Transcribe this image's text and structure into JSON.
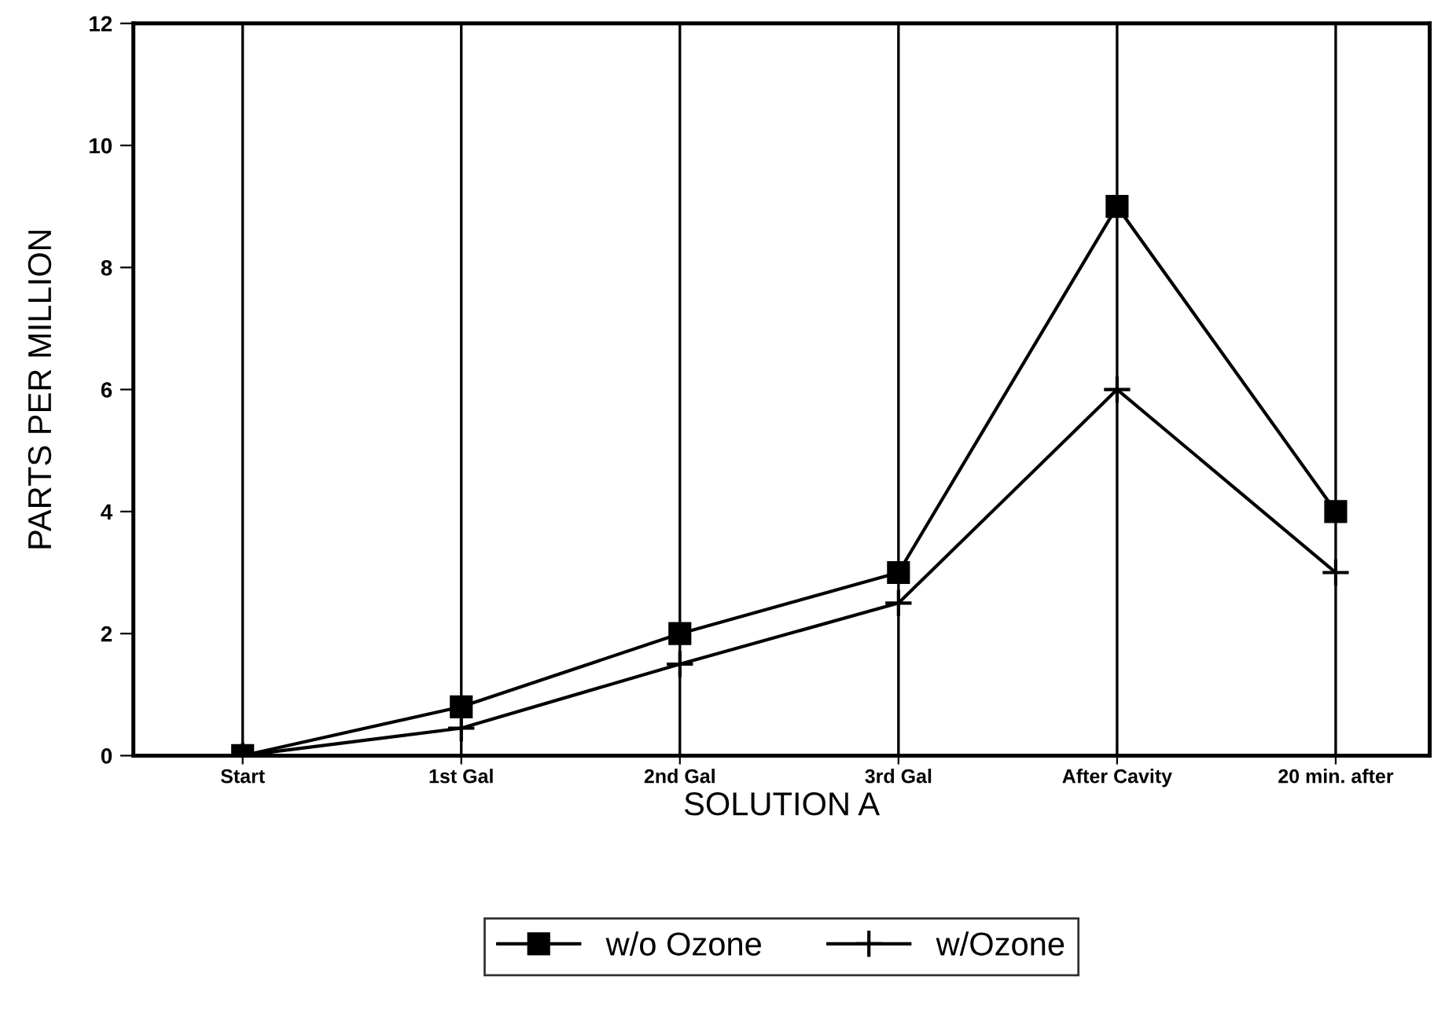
{
  "chart_data": {
    "type": "line",
    "xlabel": "SOLUTION A",
    "ylabel": "PARTS PER MILLION",
    "categories": [
      "Start",
      "1st Gal",
      "2nd Gal",
      "3rd Gal",
      "After Cavity",
      "20 min. after"
    ],
    "series": [
      {
        "name": "w/o Ozone",
        "color": "#000000",
        "marker": "square",
        "values": [
          0,
          0.8,
          2,
          3,
          9,
          4
        ]
      },
      {
        "name": "w/Ozone",
        "color": "#000000",
        "marker": "cross",
        "values": [
          0,
          0.45,
          1.5,
          2.5,
          6,
          3
        ]
      }
    ],
    "ylim": [
      0,
      12
    ],
    "yticks": [
      0,
      2,
      4,
      6,
      8,
      10,
      12
    ],
    "grid": "x",
    "legend": "bottom",
    "line_style": "solid"
  }
}
